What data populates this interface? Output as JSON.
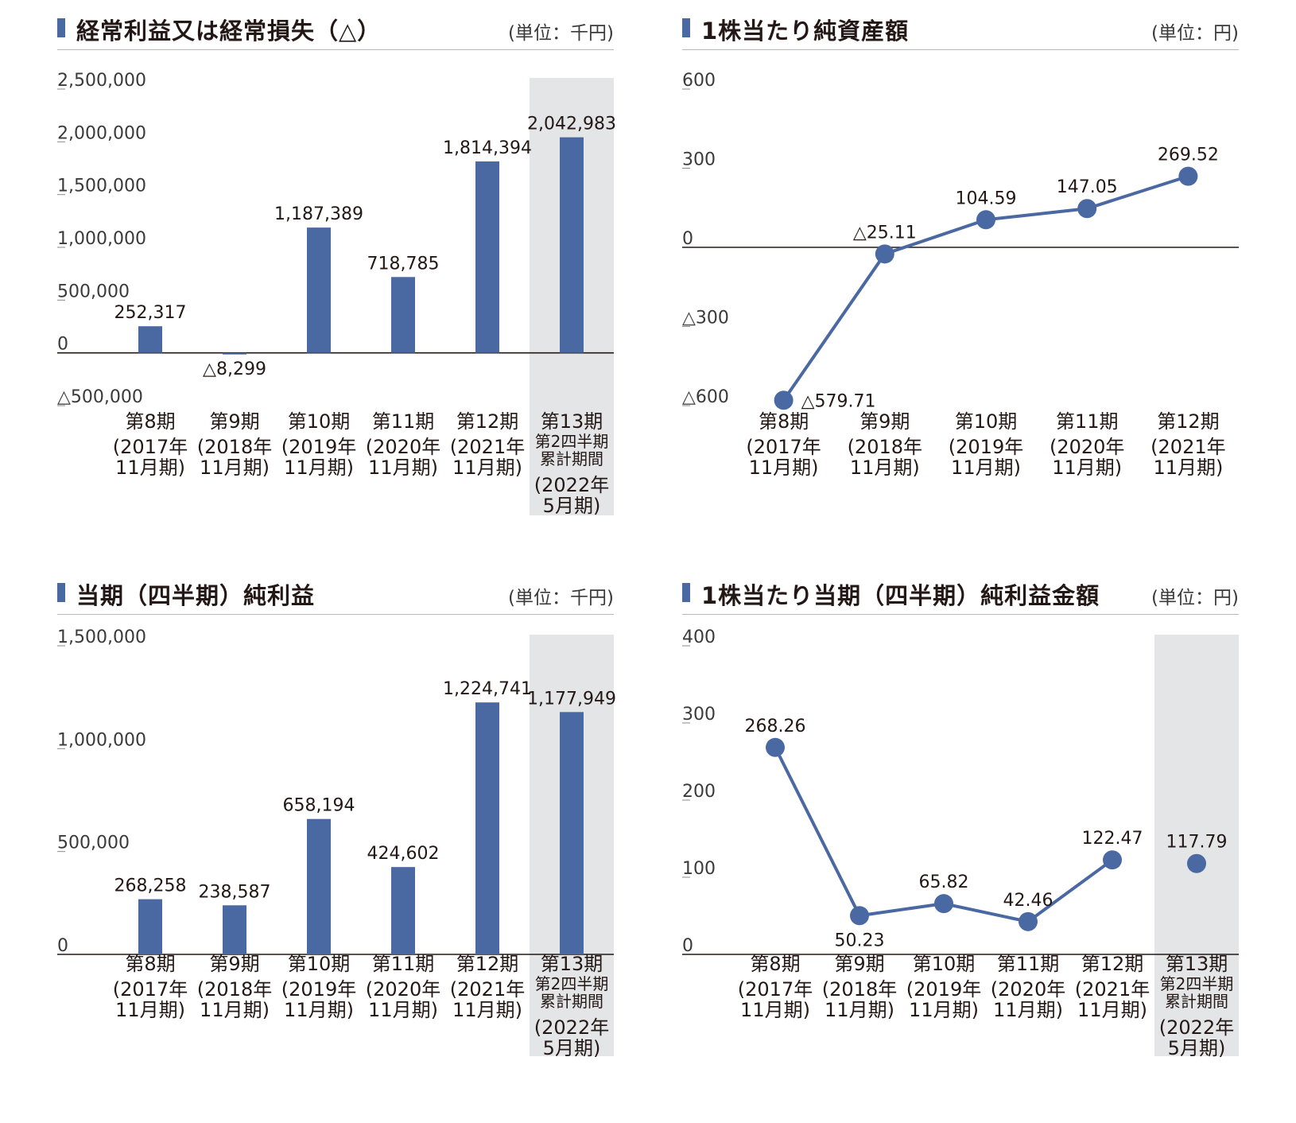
{
  "panels": [
    {
      "title": "経常利益又は経常損失（△）",
      "unit": "(単位：千円)",
      "chart_data": {
        "type": "bar",
        "title": "経常利益又は経常損失（△）",
        "unit": "(単位：千円)",
        "categories": [
          [
            "第8期",
            "(2017年",
            "11月期)"
          ],
          [
            "第9期",
            "(2018年",
            "11月期)"
          ],
          [
            "第10期",
            "(2019年",
            "11月期)"
          ],
          [
            "第11期",
            "(2020年",
            "11月期)"
          ],
          [
            "第12期",
            "(2021年",
            "11月期)"
          ],
          [
            "第13期",
            "第2四半期",
            "累計期間",
            "(2022年",
            "5月期)"
          ]
        ],
        "values": [
          252317,
          -8299,
          1187389,
          718785,
          1814394,
          2042983
        ],
        "value_labels": [
          "252,317",
          "△8,299",
          "1,187,389",
          "718,785",
          "1,814,394",
          "2,042,983"
        ],
        "yticks": [
          2500000,
          2000000,
          1500000,
          1000000,
          500000,
          0,
          -500000
        ],
        "ytick_labels": [
          "2,500,000",
          "2,000,000",
          "1,500,000",
          "1,000,000",
          "500,000",
          "0",
          "△500,000"
        ],
        "ylim": [
          -500000,
          2500000
        ],
        "highlight_last_category": true,
        "bar_color": "#4a68a2"
      }
    },
    {
      "title": "1株当たり純資産額",
      "unit": "(単位：円)",
      "chart_data": {
        "type": "line",
        "title": "1株当たり純資産額",
        "unit": "(単位：円)",
        "categories": [
          [
            "第8期",
            "(2017年",
            "11月期)"
          ],
          [
            "第9期",
            "(2018年",
            "11月期)"
          ],
          [
            "第10期",
            "(2019年",
            "11月期)"
          ],
          [
            "第11期",
            "(2020年",
            "11月期)"
          ],
          [
            "第12期",
            "(2021年",
            "11月期)"
          ]
        ],
        "values": [
          -579.71,
          -25.11,
          104.59,
          147.05,
          269.52
        ],
        "value_labels": [
          "△579.71",
          "△25.11",
          "104.59",
          "147.05",
          "269.52"
        ],
        "yticks": [
          600,
          300,
          0,
          -300,
          -600
        ],
        "ytick_labels": [
          "600",
          "300",
          "0",
          "△300",
          "△600"
        ],
        "ylim": [
          -600,
          600
        ],
        "highlight_last_category": false,
        "line_color": "#4a68a2"
      }
    },
    {
      "title": "当期（四半期）純利益",
      "unit": "(単位：千円)",
      "chart_data": {
        "type": "bar",
        "title": "当期（四半期）純利益",
        "unit": "(単位：千円)",
        "categories": [
          [
            "第8期",
            "(2017年",
            "11月期)"
          ],
          [
            "第9期",
            "(2018年",
            "11月期)"
          ],
          [
            "第10期",
            "(2019年",
            "11月期)"
          ],
          [
            "第11期",
            "(2020年",
            "11月期)"
          ],
          [
            "第12期",
            "(2021年",
            "11月期)"
          ],
          [
            "第13期",
            "第2四半期",
            "累計期間",
            "(2022年",
            "5月期)"
          ]
        ],
        "values": [
          268258,
          238587,
          658194,
          424602,
          1224741,
          1177949
        ],
        "value_labels": [
          "268,258",
          "238,587",
          "658,194",
          "424,602",
          "1,224,741",
          "1,177,949"
        ],
        "yticks": [
          1500000,
          1000000,
          500000,
          0
        ],
        "ytick_labels": [
          "1,500,000",
          "1,000,000",
          "500,000",
          "0"
        ],
        "ylim": [
          0,
          1500000
        ],
        "highlight_last_category": true,
        "bar_color": "#4a68a2"
      }
    },
    {
      "title": "1株当たり当期（四半期）純利益金額",
      "unit": "(単位：円)",
      "chart_data": {
        "type": "line",
        "title": "1株当たり当期（四半期）純利益金額",
        "unit": "(単位：円)",
        "categories": [
          [
            "第8期",
            "(2017年",
            "11月期)"
          ],
          [
            "第9期",
            "(2018年",
            "11月期)"
          ],
          [
            "第10期",
            "(2019年",
            "11月期)"
          ],
          [
            "第11期",
            "(2020年",
            "11月期)"
          ],
          [
            "第12期",
            "(2021年",
            "11月期)"
          ],
          [
            "第13期",
            "第2四半期",
            "累計期間",
            "(2022年",
            "5月期)"
          ]
        ],
        "values": [
          268.26,
          50.23,
          65.82,
          42.46,
          122.47,
          117.79
        ],
        "value_labels": [
          "268.26",
          "50.23",
          "65.82",
          "42.46",
          "122.47",
          "117.79"
        ],
        "label_position": [
          "above",
          "below",
          "above",
          "above",
          "above",
          "above"
        ],
        "connected": [
          true,
          true,
          true,
          true,
          true,
          false
        ],
        "yticks": [
          400,
          300,
          200,
          100,
          0
        ],
        "ytick_labels": [
          "400",
          "300",
          "200",
          "100",
          "0"
        ],
        "ylim": [
          0,
          400
        ],
        "highlight_last_category": true,
        "line_color": "#4a68a2"
      }
    }
  ]
}
